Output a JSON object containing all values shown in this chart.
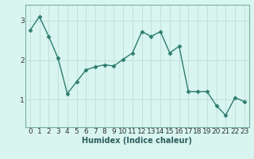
{
  "x": [
    0,
    1,
    2,
    3,
    4,
    5,
    6,
    7,
    8,
    9,
    10,
    11,
    12,
    13,
    14,
    15,
    16,
    17,
    18,
    19,
    20,
    21,
    22,
    23
  ],
  "y": [
    2.75,
    3.1,
    2.6,
    2.05,
    1.15,
    1.45,
    1.75,
    1.83,
    1.88,
    1.85,
    2.02,
    2.18,
    2.72,
    2.6,
    2.72,
    2.18,
    2.35,
    1.2,
    1.2,
    1.2,
    0.85,
    0.6,
    1.05,
    0.95
  ],
  "line_color": "#2e7d6e",
  "marker": "D",
  "marker_size": 2.5,
  "bg_color": "#d8f5f0",
  "grid_color": "#c0ddd8",
  "xlabel": "Humidex (Indice chaleur)",
  "xlim": [
    -0.5,
    23.5
  ],
  "ylim": [
    0.3,
    3.4
  ],
  "yticks": [
    1,
    2,
    3
  ],
  "xticks": [
    0,
    1,
    2,
    3,
    4,
    5,
    6,
    7,
    8,
    9,
    10,
    11,
    12,
    13,
    14,
    15,
    16,
    17,
    18,
    19,
    20,
    21,
    22,
    23
  ],
  "xlabel_fontsize": 7,
  "tick_fontsize": 6.5,
  "line_width": 1.0,
  "spine_color": "#7aada6"
}
